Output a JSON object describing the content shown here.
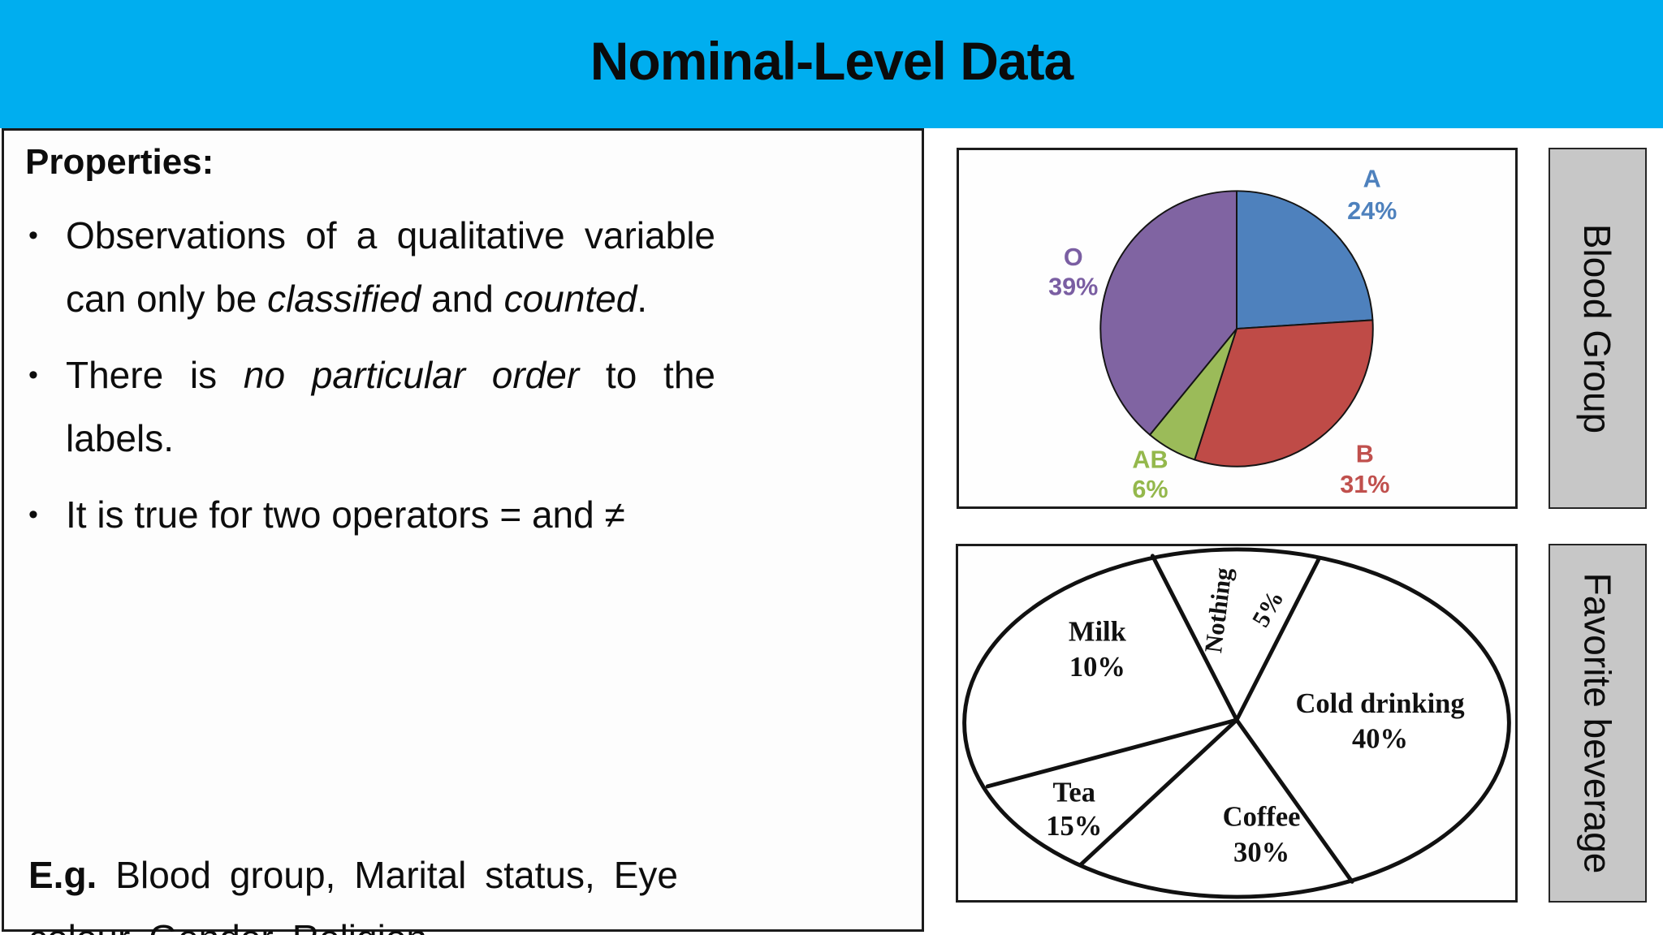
{
  "header": {
    "title": "Nominal-Level Data",
    "bg_color": "#00AEEF"
  },
  "properties_panel": {
    "heading": "Properties:",
    "bullet_char": "•",
    "bullets": [
      {
        "segments": [
          {
            "text": "Observations of a qualitative variable can only be "
          },
          {
            "text": "classified",
            "italic": true
          },
          {
            "text": " and "
          },
          {
            "text": "counted",
            "italic": true
          },
          {
            "text": "."
          }
        ]
      },
      {
        "segments": [
          {
            "text": "There is "
          },
          {
            "text": "no particular order",
            "italic": true
          },
          {
            "text": " to the labels."
          }
        ]
      },
      {
        "segments": [
          {
            "text": "It is true for two operators = and ≠"
          }
        ]
      }
    ],
    "example": {
      "prefix": "E.g.",
      "rest": " Blood group, Marital status, Eye colour, Gender, Religion"
    }
  },
  "side_labels": [
    {
      "text": "Blood Group",
      "bg_color": "#C7C7C7"
    },
    {
      "text": "Favorite beverage",
      "bg_color": "#C7C7C7"
    }
  ],
  "chart_data": [
    {
      "type": "pie",
      "title": "Blood Group",
      "categories": [
        "A",
        "B",
        "AB",
        "O"
      ],
      "values": [
        24,
        31,
        6,
        39
      ],
      "unit": "%",
      "data_labels": [
        "A 24%",
        "B 31%",
        "AB 6%",
        "O 39%"
      ],
      "slice_colors": [
        "#4E81BD",
        "#BF4B47",
        "#9BBB59",
        "#8064A2"
      ],
      "label_colors": [
        "#4E81BD",
        "#C0504D",
        "#94B84C",
        "#7A5EA2"
      ],
      "start_angle": "top",
      "direction": "clockwise",
      "legend": "none"
    },
    {
      "type": "pie",
      "title": "Favorite beverage",
      "categories": [
        "Nothing",
        "Cold drinking",
        "Coffee",
        "Tea",
        "Milk"
      ],
      "values": [
        5,
        40,
        30,
        15,
        10
      ],
      "unit": "%",
      "data_labels": [
        "Nothing 5%",
        "Cold drinking 40%",
        "Coffee 30%",
        "Tea 15%",
        "Milk 10%"
      ],
      "slice_colors": [
        "#ffffff",
        "#ffffff",
        "#ffffff",
        "#ffffff",
        "#ffffff"
      ],
      "outline_color": "#111111",
      "style": "black outline sketch",
      "legend": "none"
    }
  ]
}
